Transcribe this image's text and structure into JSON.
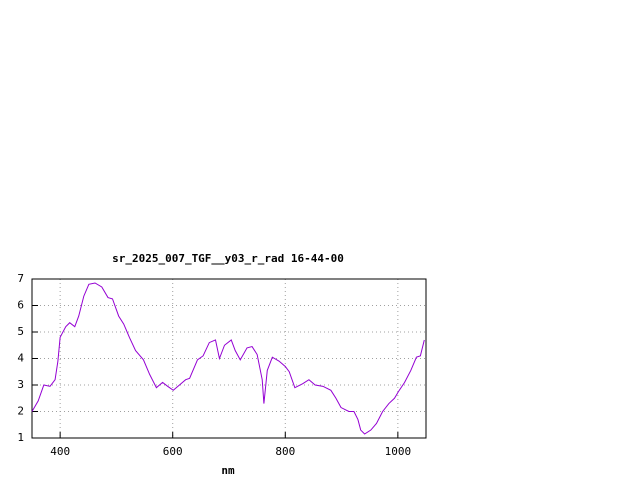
{
  "chart_data": {
    "type": "line",
    "title": "sr_2025_007_TGF__y03_r_rad 16-44-00",
    "x_label": "nm",
    "xlim": [
      350,
      1050
    ],
    "ylim": [
      1,
      7
    ],
    "xticks": [
      400,
      600,
      800,
      1000
    ],
    "yticks": [
      1,
      2,
      3,
      4,
      5,
      6,
      7
    ],
    "grid": true,
    "series": [
      {
        "color": "#9400d3",
        "x": [
          350,
          361,
          371,
          382,
          391,
          396,
          400,
          410,
          417,
          426,
          433,
          442,
          451,
          462,
          474,
          485,
          493,
          504,
          513,
          523,
          534,
          548,
          559,
          571,
          582,
          591,
          601,
          612,
          623,
          630,
          644,
          654,
          665,
          676,
          683,
          692,
          704,
          711,
          720,
          732,
          741,
          750,
          759,
          762,
          768,
          777,
          789,
          800,
          807,
          817,
          831,
          842,
          853,
          867,
          881,
          890,
          899,
          913,
          922,
          929,
          934,
          941,
          952,
          962,
          973,
          984,
          994,
          1001,
          1012,
          1023,
          1033,
          1040,
          1047
        ],
        "values": [
          2.0,
          2.4,
          3.0,
          2.95,
          3.2,
          3.9,
          4.8,
          5.2,
          5.35,
          5.2,
          5.6,
          6.35,
          6.8,
          6.85,
          6.7,
          6.3,
          6.25,
          5.6,
          5.3,
          4.8,
          4.3,
          3.95,
          3.4,
          2.9,
          3.1,
          2.95,
          2.8,
          3.0,
          3.2,
          3.25,
          3.95,
          4.1,
          4.6,
          4.7,
          4.0,
          4.5,
          4.7,
          4.3,
          3.95,
          4.4,
          4.45,
          4.15,
          3.2,
          2.3,
          3.55,
          4.05,
          3.9,
          3.7,
          3.5,
          2.9,
          3.05,
          3.2,
          3.0,
          2.95,
          2.8,
          2.5,
          2.15,
          2.0,
          2.0,
          1.7,
          1.3,
          1.15,
          1.3,
          1.55,
          2.0,
          2.3,
          2.5,
          2.75,
          3.1,
          3.55,
          4.05,
          4.1,
          4.7
        ]
      }
    ]
  }
}
